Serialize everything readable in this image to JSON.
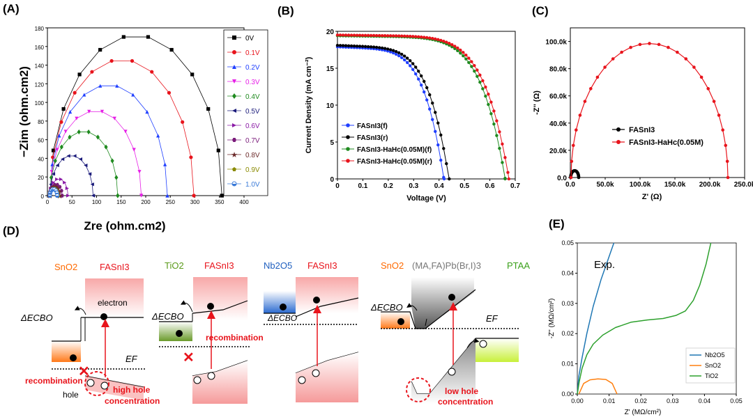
{
  "panel_labels": [
    "(A)",
    "(B)",
    "(C)",
    "(D)",
    "(E)"
  ],
  "colors": {
    "black": "#000000",
    "red": "#e8141c",
    "blue": "#1f3fff",
    "magenta": "#e61ee6",
    "green": "#1f8a1f",
    "navy": "#1a1a7a",
    "purple": "#7a1a7a",
    "brown": "#6b2a2a",
    "olive": "#8a8a00",
    "skyblue": "#3a7ad8",
    "nb2o5": "#1f77b4",
    "sno2": "#ff7f0e",
    "tio2": "#2ca02c",
    "sno2_text": "#ff6a00",
    "tio2_text": "#5a9a1a",
    "nb2o5_text": "#1f5fbf",
    "fasni3_text": "#e8141c",
    "ptaa_text": "#3aa01a",
    "perov_text": "#777777"
  },
  "chart_data": [
    {
      "id": "A",
      "type": "scatter",
      "xlabel": "Zre (ohm.cm2)",
      "ylabel": "−Zim (ohm.cm2)",
      "xlim": [
        0,
        400
      ],
      "ylim": [
        0,
        180
      ],
      "xticks": [
        0,
        50,
        100,
        150,
        200,
        250,
        300,
        350,
        400
      ],
      "yticks": [
        0,
        20,
        40,
        60,
        80,
        100,
        120,
        140,
        160,
        180
      ],
      "legend_position": "top-right",
      "series": [
        {
          "name": "0V",
          "color": "#000000",
          "marker": "square",
          "arc": [
            5,
            355,
            172
          ]
        },
        {
          "name": "0.1V",
          "color": "#e8141c",
          "marker": "circle",
          "arc": [
            5,
            298,
            146
          ]
        },
        {
          "name": "0.2V",
          "color": "#1f3fff",
          "marker": "triangle-up",
          "arc": [
            5,
            244,
            119
          ]
        },
        {
          "name": "0.3V",
          "color": "#e61ee6",
          "marker": "triangle-down",
          "arc": [
            5,
            191,
            91
          ]
        },
        {
          "name": "0.4V",
          "color": "#1f8a1f",
          "marker": "diamond",
          "arc": [
            5,
            143,
            69
          ]
        },
        {
          "name": "0.5V",
          "color": "#1a1a7a",
          "marker": "triangle-left",
          "arc": [
            5,
            93,
            43
          ]
        },
        {
          "name": "0.6V",
          "color": "#8a1aa6",
          "marker": "triangle-right",
          "arc": [
            5,
            42,
            18
          ]
        },
        {
          "name": "0.7V",
          "color": "#7a1a7a",
          "marker": "hexagon",
          "arc": [
            5,
            30,
            12
          ]
        },
        {
          "name": "0.8V",
          "color": "#6b2a2a",
          "marker": "star",
          "arc": [
            5,
            25,
            10
          ]
        },
        {
          "name": "0.9V",
          "color": "#8a8a00",
          "marker": "pentagon",
          "arc": [
            5,
            22,
            8
          ]
        },
        {
          "name": "1.0V",
          "color": "#3a7ad8",
          "marker": "circle-half",
          "arc": [
            5,
            20,
            7
          ]
        }
      ]
    },
    {
      "id": "B",
      "type": "line",
      "xlabel": "Voltage (V)",
      "ylabel": "Current Density (mA cm⁻²)",
      "xlim": [
        0,
        0.7
      ],
      "ylim": [
        0,
        20
      ],
      "xticks": [
        0.0,
        0.1,
        0.2,
        0.3,
        0.4,
        0.5,
        0.6,
        0.7
      ],
      "yticks": [
        0,
        5,
        10,
        15,
        20
      ],
      "legend_position": "bottom-left",
      "series": [
        {
          "name": "FASnI3(f)",
          "color": "#1f3fff",
          "jsc": 17.9,
          "voc": 0.42,
          "n": 2.2
        },
        {
          "name": "FASnI3(r)",
          "color": "#000000",
          "jsc": 18.1,
          "voc": 0.44,
          "n": 2.2
        },
        {
          "name": "FASnI3-HaHc(0.05M)(f)",
          "color": "#1f8a1f",
          "jsc": 19.4,
          "voc": 0.66,
          "n": 1.7
        },
        {
          "name": "FASnI3-HaHc(0.05M)(r)",
          "color": "#e8141c",
          "jsc": 19.5,
          "voc": 0.675,
          "n": 1.7
        }
      ]
    },
    {
      "id": "C",
      "type": "scatter",
      "xlabel": "Z' (Ω)",
      "ylabel": "-Z'' (Ω)",
      "xlim": [
        0,
        250000
      ],
      "ylim": [
        0,
        110000
      ],
      "xticks": [
        "0.0",
        "50.0k",
        "100.0k",
        "150.0k",
        "200.0k",
        "250.0k"
      ],
      "xtick_values": [
        0,
        50000,
        100000,
        150000,
        200000,
        250000
      ],
      "yticks": [
        "0.0",
        "20.0k",
        "40.0k",
        "60.0k",
        "80.0k",
        "100.0k"
      ],
      "ytick_values": [
        0,
        20000,
        40000,
        60000,
        80000,
        100000
      ],
      "legend_position": "center-left",
      "series": [
        {
          "name": "FASnI3",
          "color": "#000000",
          "arc": [
            500,
            12000,
            5000
          ]
        },
        {
          "name": "FASnI3-HaHc(0.05M)",
          "color": "#e8141c",
          "arc": [
            1000,
            226000,
            98500
          ]
        }
      ]
    },
    {
      "id": "E",
      "type": "line",
      "xlabel": "Z' (MΩ/cm²)",
      "ylabel": "-Z'' (MΩ/cm²)",
      "xlim": [
        0,
        0.05
      ],
      "ylim": [
        0,
        0.05
      ],
      "xticks": [
        "0.00",
        "0.01",
        "0.02",
        "0.03",
        "0.04",
        "0.05"
      ],
      "yticks": [
        "0.00",
        "0.01",
        "0.02",
        "0.03",
        "0.04",
        "0.05"
      ],
      "annotation": "Exp.",
      "legend_position": "bottom-right",
      "series": [
        {
          "name": "Nb2O5",
          "color": "#1f77b4",
          "points": [
            [
              0,
              0
            ],
            [
              0.0005,
              0.006
            ],
            [
              0.0015,
              0.012
            ],
            [
              0.003,
              0.02
            ],
            [
              0.005,
              0.029
            ],
            [
              0.0075,
              0.038
            ],
            [
              0.0105,
              0.047
            ],
            [
              0.0115,
              0.05
            ]
          ]
        },
        {
          "name": "SnO2",
          "color": "#ff7f0e",
          "points": [
            [
              0.0005,
              0
            ],
            [
              0.002,
              0.0035
            ],
            [
              0.004,
              0.0047
            ],
            [
              0.0065,
              0.005
            ],
            [
              0.009,
              0.0048
            ],
            [
              0.011,
              0.0035
            ],
            [
              0.0125,
              0.0
            ]
          ]
        },
        {
          "name": "TiO2",
          "color": "#2ca02c",
          "points": [
            [
              0,
              0
            ],
            [
              0.0006,
              0.004
            ],
            [
              0.0015,
              0.0085
            ],
            [
              0.003,
              0.013
            ],
            [
              0.005,
              0.0165
            ],
            [
              0.008,
              0.0195
            ],
            [
              0.012,
              0.022
            ],
            [
              0.017,
              0.0238
            ],
            [
              0.022,
              0.0245
            ],
            [
              0.027,
              0.025
            ],
            [
              0.031,
              0.026
            ],
            [
              0.034,
              0.0275
            ],
            [
              0.0365,
              0.031
            ],
            [
              0.0385,
              0.036
            ],
            [
              0.0405,
              0.043
            ],
            [
              0.042,
              0.05
            ]
          ]
        }
      ]
    }
  ],
  "diagram_D": {
    "blocks": [
      {
        "etl": "SnO2",
        "absorber": "FASnI3",
        "labels": [
          "electron",
          "ΔECBO",
          "EF",
          "recombination",
          "hole",
          "high hole",
          "concentration"
        ]
      },
      {
        "etl": "TiO2",
        "absorber": "FASnI3",
        "labels": [
          "ΔECBO",
          "recombination"
        ]
      },
      {
        "etl": "Nb2O5",
        "absorber": "FASnI3",
        "labels": [
          "ΔECBO"
        ]
      },
      {
        "etl": "SnO2",
        "absorber": "(MA,FA)Pb(Br,I)3",
        "htl": "PTAA",
        "labels": [
          "ΔECBO",
          "EF",
          "low hole",
          "concentration"
        ]
      }
    ]
  }
}
